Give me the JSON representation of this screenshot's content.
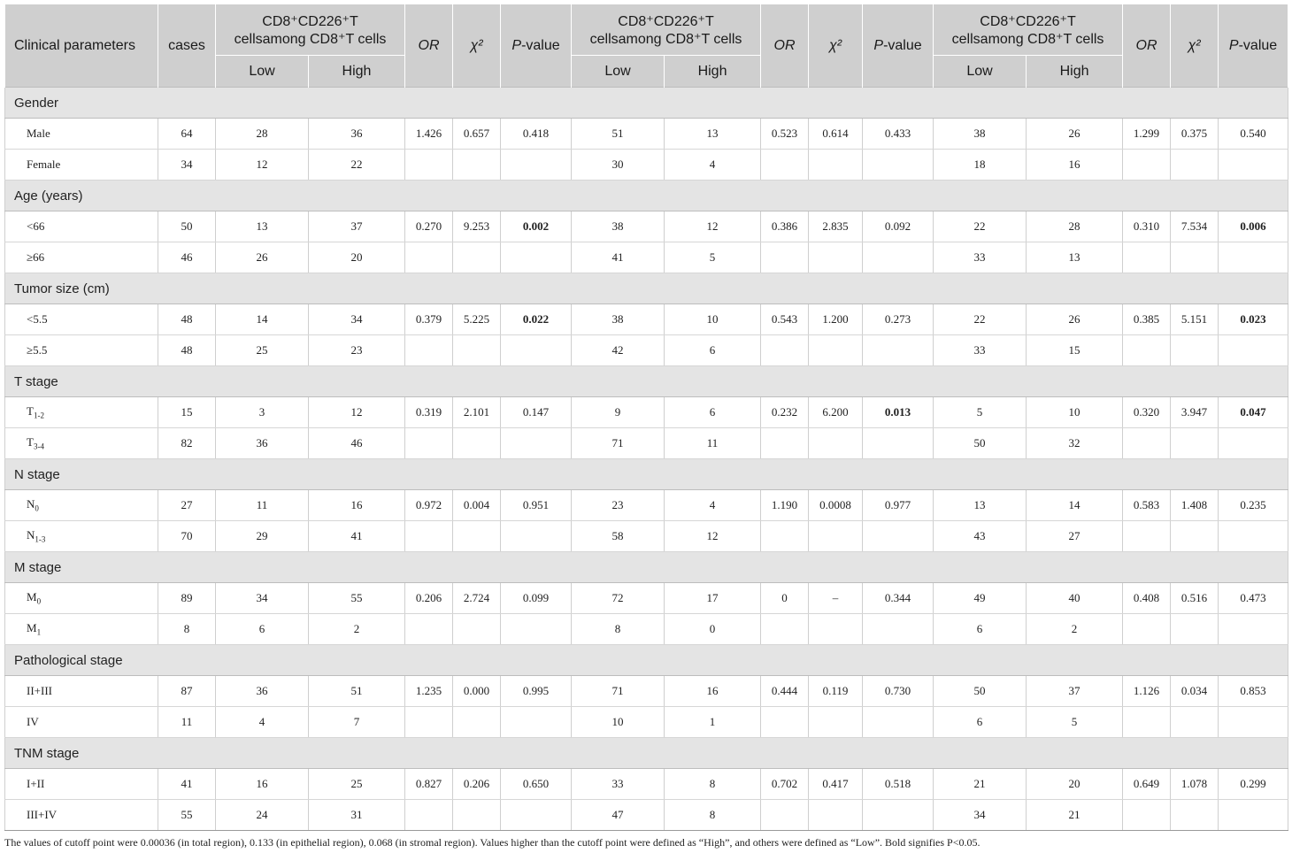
{
  "header": {
    "param": "Clinical parameters",
    "cases": "cases",
    "group_line1": "CD8⁺CD226⁺T",
    "group_line2": "cellsamong CD8⁺T cells",
    "or": "OR",
    "chi": "χ²",
    "p_italic": "P",
    "p_rest": "-value",
    "low": "Low",
    "high": "High"
  },
  "groups": [
    {
      "title": "Gender",
      "rows": [
        {
          "label": "Male",
          "cells": [
            "64",
            "28",
            "36",
            "1.426",
            "0.657",
            "0.418",
            "51",
            "13",
            "0.523",
            "0.614",
            "0.433",
            "38",
            "26",
            "1.299",
            "0.375",
            "0.540"
          ],
          "bold": []
        },
        {
          "label": "Female",
          "cells": [
            "34",
            "12",
            "22",
            "",
            "",
            "",
            "30",
            "4",
            "",
            "",
            "",
            "18",
            "16",
            "",
            "",
            ""
          ],
          "bold": []
        }
      ]
    },
    {
      "title": "Age (years)",
      "rows": [
        {
          "label": "<66",
          "cells": [
            "50",
            "13",
            "37",
            "0.270",
            "9.253",
            "0.002",
            "38",
            "12",
            "0.386",
            "2.835",
            "0.092",
            "22",
            "28",
            "0.310",
            "7.534",
            "0.006"
          ],
          "bold": [
            5,
            15
          ]
        },
        {
          "label": "≥66",
          "cells": [
            "46",
            "26",
            "20",
            "",
            "",
            "",
            "41",
            "5",
            "",
            "",
            "",
            "33",
            "13",
            "",
            "",
            ""
          ],
          "bold": []
        }
      ]
    },
    {
      "title": "Tumor size (cm)",
      "rows": [
        {
          "label": "<5.5",
          "cells": [
            "48",
            "14",
            "34",
            "0.379",
            "5.225",
            "0.022",
            "38",
            "10",
            "0.543",
            "1.200",
            "0.273",
            "22",
            "26",
            "0.385",
            "5.151",
            "0.023"
          ],
          "bold": [
            5,
            15
          ]
        },
        {
          "label": "≥5.5",
          "cells": [
            "48",
            "25",
            "23",
            "",
            "",
            "",
            "42",
            "6",
            "",
            "",
            "",
            "33",
            "15",
            "",
            "",
            ""
          ],
          "bold": []
        }
      ]
    },
    {
      "title": "T stage",
      "rows": [
        {
          "label": "T",
          "sub": "1-2",
          "cells": [
            "15",
            "3",
            "12",
            "0.319",
            "2.101",
            "0.147",
            "9",
            "6",
            "0.232",
            "6.200",
            "0.013",
            "5",
            "10",
            "0.320",
            "3.947",
            "0.047"
          ],
          "bold": [
            10,
            15
          ]
        },
        {
          "label": "T",
          "sub": "3-4",
          "cells": [
            "82",
            "36",
            "46",
            "",
            "",
            "",
            "71",
            "11",
            "",
            "",
            "",
            "50",
            "32",
            "",
            "",
            ""
          ],
          "bold": []
        }
      ]
    },
    {
      "title": "N stage",
      "rows": [
        {
          "label": "N",
          "sub": "0",
          "cells": [
            "27",
            "11",
            "16",
            "0.972",
            "0.004",
            "0.951",
            "23",
            "4",
            "1.190",
            "0.0008",
            "0.977",
            "13",
            "14",
            "0.583",
            "1.408",
            "0.235"
          ],
          "bold": []
        },
        {
          "label": "N",
          "sub": "1-3",
          "cells": [
            "70",
            "29",
            "41",
            "",
            "",
            "",
            "58",
            "12",
            "",
            "",
            "",
            "43",
            "27",
            "",
            "",
            ""
          ],
          "bold": []
        }
      ]
    },
    {
      "title": "M stage",
      "rows": [
        {
          "label": "M",
          "sub": "0",
          "cells": [
            "89",
            "34",
            "55",
            "0.206",
            "2.724",
            "0.099",
            "72",
            "17",
            "0",
            "–",
            "0.344",
            "49",
            "40",
            "0.408",
            "0.516",
            "0.473"
          ],
          "bold": []
        },
        {
          "label": "M",
          "sub": "1",
          "cells": [
            "8",
            "6",
            "2",
            "",
            "",
            "",
            "8",
            "0",
            "",
            "",
            "",
            "6",
            "2",
            "",
            "",
            ""
          ],
          "bold": []
        }
      ]
    },
    {
      "title": "Pathological stage",
      "rows": [
        {
          "label": "II+III",
          "cells": [
            "87",
            "36",
            "51",
            "1.235",
            "0.000",
            "0.995",
            "71",
            "16",
            "0.444",
            "0.119",
            "0.730",
            "50",
            "37",
            "1.126",
            "0.034",
            "0.853"
          ],
          "bold": []
        },
        {
          "label": "IV",
          "cells": [
            "11",
            "4",
            "7",
            "",
            "",
            "",
            "10",
            "1",
            "",
            "",
            "",
            "6",
            "5",
            "",
            "",
            ""
          ],
          "bold": []
        }
      ]
    },
    {
      "title": "TNM stage",
      "rows": [
        {
          "label": "I+II",
          "cells": [
            "41",
            "16",
            "25",
            "0.827",
            "0.206",
            "0.650",
            "33",
            "8",
            "0.702",
            "0.417",
            "0.518",
            "21",
            "20",
            "0.649",
            "1.078",
            "0.299"
          ],
          "bold": []
        },
        {
          "label": "III+IV",
          "cells": [
            "55",
            "24",
            "31",
            "",
            "",
            "",
            "47",
            "8",
            "",
            "",
            "",
            "34",
            "21",
            "",
            "",
            ""
          ],
          "bold": []
        }
      ]
    }
  ],
  "footnote": "The values of cutoff point were 0.00036 (in total region), 0.133 (in epithelial region), 0.068 (in stromal region). Values higher than the cutoff point were defined as “High”, and others were defined as “Low”. Bold signifies P<0.05."
}
